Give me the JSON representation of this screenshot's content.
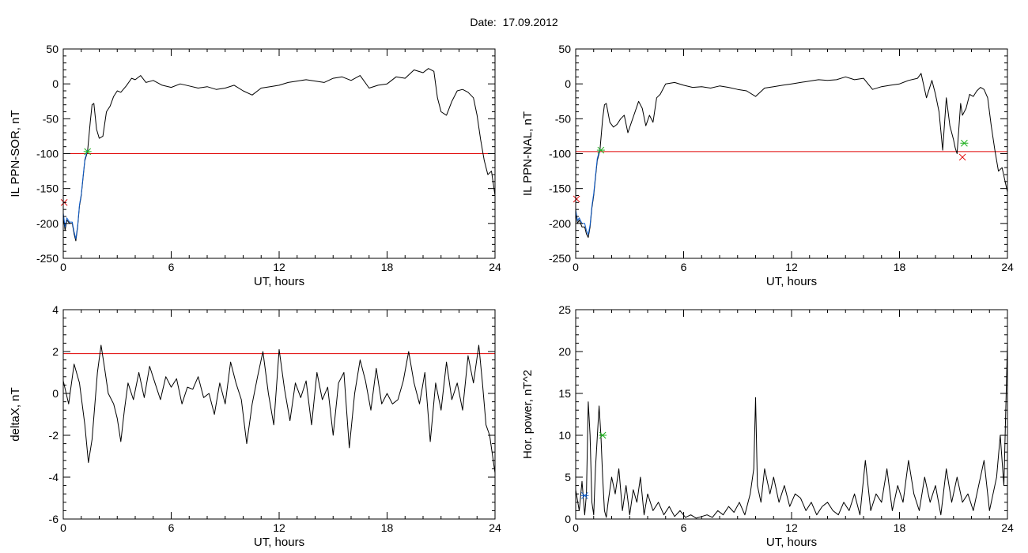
{
  "page": {
    "title": "Date:  17.09.2012"
  },
  "colors": {
    "trace": "#000000",
    "threshold": "#e00000",
    "blue": "#1060d0",
    "green": "#20b020",
    "red": "#e00000"
  },
  "chart_data": [
    {
      "type": "line",
      "ylabel": "IL PPN-SOR, nT",
      "xlabel": "UT, hours",
      "xlim": [
        0,
        24
      ],
      "ylim": [
        -250,
        50
      ],
      "xticks": [
        0,
        6,
        12,
        18,
        24
      ],
      "yticks": [
        -250,
        -200,
        -150,
        -100,
        -50,
        0,
        50
      ],
      "threshold": -100,
      "series": [
        {
          "color": "black",
          "x": [
            0,
            0.1,
            0.2,
            0.35,
            0.5,
            0.6,
            0.7,
            0.8,
            0.9,
            1.0,
            1.1,
            1.2,
            1.35,
            1.5,
            1.6,
            1.7,
            1.85,
            2.0,
            2.2,
            2.4,
            2.6,
            2.8,
            3.0,
            3.2,
            3.5,
            3.8,
            4.0,
            4.3,
            4.6,
            5.0,
            5.5,
            6.0,
            6.5,
            7.0,
            7.5,
            8.0,
            8.5,
            9.0,
            9.5,
            10.0,
            10.5,
            11.0,
            11.5,
            12.0,
            12.5,
            13.0,
            13.5,
            14.0,
            14.5,
            15.0,
            15.5,
            16.0,
            16.5,
            17.0,
            17.5,
            18.0,
            18.5,
            19.0,
            19.5,
            20.0,
            20.3,
            20.6,
            20.8,
            21.0,
            21.3,
            21.6,
            21.9,
            22.2,
            22.5,
            22.8,
            23.0,
            23.2,
            23.4,
            23.6,
            23.8,
            24.0
          ],
          "y": [
            -190,
            -210,
            -195,
            -200,
            -200,
            -215,
            -225,
            -205,
            -175,
            -160,
            -135,
            -110,
            -97,
            -55,
            -30,
            -28,
            -65,
            -78,
            -75,
            -40,
            -32,
            -18,
            -10,
            -12,
            -3,
            8,
            6,
            12,
            2,
            5,
            -2,
            -5,
            0,
            -3,
            -6,
            -4,
            -8,
            -6,
            -2,
            -10,
            -16,
            -6,
            -4,
            -2,
            2,
            4,
            6,
            4,
            2,
            8,
            10,
            5,
            12,
            -6,
            -2,
            0,
            10,
            8,
            20,
            16,
            22,
            18,
            -20,
            -40,
            -45,
            -25,
            -10,
            -8,
            -12,
            -20,
            -45,
            -80,
            -110,
            -130,
            -125,
            -160
          ]
        },
        {
          "color": "blue",
          "x": [
            0,
            0.1,
            0.2,
            0.35,
            0.5,
            0.6,
            0.7,
            0.8,
            0.9,
            1.0,
            1.1,
            1.2,
            1.35
          ],
          "y": [
            -185,
            -205,
            -192,
            -198,
            -198,
            -212,
            -222,
            -203,
            -173,
            -158,
            -133,
            -108,
            -95
          ]
        }
      ],
      "markers": [
        {
          "x": 1.35,
          "y": -97,
          "symbol": "*",
          "color": "green"
        },
        {
          "x": 0.05,
          "y": -170,
          "symbol": "x",
          "color": "red"
        }
      ]
    },
    {
      "type": "line",
      "ylabel": "IL PPN-NAL, nT",
      "xlabel": "UT, hours",
      "xlim": [
        0,
        24
      ],
      "ylim": [
        -250,
        50
      ],
      "xticks": [
        0,
        6,
        12,
        18,
        24
      ],
      "yticks": [
        -250,
        -200,
        -150,
        -100,
        -50,
        0,
        50
      ],
      "threshold": -97,
      "series": [
        {
          "color": "black",
          "x": [
            0,
            0.1,
            0.2,
            0.35,
            0.5,
            0.6,
            0.7,
            0.8,
            0.9,
            1.0,
            1.1,
            1.2,
            1.35,
            1.5,
            1.6,
            1.7,
            1.9,
            2.1,
            2.3,
            2.5,
            2.7,
            2.9,
            3.1,
            3.3,
            3.5,
            3.7,
            3.9,
            4.1,
            4.3,
            4.5,
            4.7,
            5.0,
            5.5,
            6.0,
            6.5,
            7.0,
            7.5,
            8.0,
            8.5,
            9.0,
            9.5,
            10.0,
            10.5,
            11.0,
            11.5,
            12.0,
            12.5,
            13.0,
            13.5,
            14.0,
            14.5,
            15.0,
            15.5,
            16.0,
            16.5,
            17.0,
            17.5,
            18.0,
            18.5,
            19.0,
            19.2,
            19.5,
            19.8,
            20.0,
            20.2,
            20.4,
            20.6,
            20.8,
            21.0,
            21.1,
            21.2,
            21.4,
            21.5,
            21.7,
            21.9,
            22.1,
            22.3,
            22.5,
            22.7,
            22.9,
            23.1,
            23.3,
            23.5,
            23.7,
            24.0
          ],
          "y": [
            -185,
            -200,
            -195,
            -205,
            -205,
            -215,
            -220,
            -205,
            -178,
            -160,
            -135,
            -110,
            -95,
            -50,
            -30,
            -28,
            -55,
            -62,
            -58,
            -50,
            -45,
            -70,
            -55,
            -40,
            -25,
            -35,
            -60,
            -45,
            -55,
            -20,
            -15,
            0,
            2,
            -2,
            -5,
            -4,
            -6,
            -3,
            -5,
            -8,
            -10,
            -18,
            -6,
            -4,
            -2,
            0,
            2,
            4,
            6,
            5,
            6,
            10,
            6,
            8,
            -8,
            -4,
            -2,
            0,
            5,
            8,
            15,
            -20,
            5,
            -15,
            -40,
            -95,
            -20,
            -60,
            -80,
            -92,
            -100,
            -28,
            -45,
            -35,
            -15,
            -18,
            -10,
            -5,
            -8,
            -20,
            -60,
            -95,
            -125,
            -120,
            -155
          ]
        },
        {
          "color": "blue",
          "x": [
            0,
            0.1,
            0.2,
            0.35,
            0.5,
            0.6,
            0.7,
            0.8,
            0.9,
            1.0,
            1.1,
            1.2,
            1.35
          ],
          "y": [
            -180,
            -196,
            -192,
            -200,
            -200,
            -210,
            -216,
            -202,
            -175,
            -157,
            -132,
            -107,
            -93
          ]
        }
      ],
      "markers": [
        {
          "x": 1.4,
          "y": -95,
          "symbol": "*",
          "color": "green"
        },
        {
          "x": 21.6,
          "y": -85,
          "symbol": "*",
          "color": "green"
        },
        {
          "x": 21.5,
          "y": -105,
          "symbol": "x",
          "color": "red"
        },
        {
          "x": 0.05,
          "y": -165,
          "symbol": "x",
          "color": "red"
        }
      ]
    },
    {
      "type": "line",
      "ylabel": "deltaX, nT",
      "xlabel": "UT, hours",
      "xlim": [
        0,
        24
      ],
      "ylim": [
        -6,
        4
      ],
      "xticks": [
        0,
        6,
        12,
        18,
        24
      ],
      "yticks": [
        -6,
        -4,
        -2,
        0,
        2,
        4
      ],
      "threshold": 1.9,
      "series": [
        {
          "color": "black",
          "x": [
            0,
            0.3,
            0.6,
            0.9,
            1.2,
            1.4,
            1.6,
            1.9,
            2.1,
            2.3,
            2.5,
            2.8,
            3.0,
            3.2,
            3.4,
            3.6,
            3.9,
            4.2,
            4.5,
            4.8,
            5.1,
            5.4,
            5.7,
            6.0,
            6.3,
            6.6,
            6.9,
            7.2,
            7.5,
            7.8,
            8.1,
            8.4,
            8.7,
            9.0,
            9.3,
            9.6,
            9.9,
            10.2,
            10.5,
            10.8,
            11.1,
            11.4,
            11.7,
            12.0,
            12.3,
            12.6,
            12.9,
            13.2,
            13.5,
            13.8,
            14.1,
            14.4,
            14.7,
            15.0,
            15.3,
            15.6,
            15.9,
            16.2,
            16.5,
            16.8,
            17.1,
            17.4,
            17.7,
            18.0,
            18.3,
            18.6,
            18.9,
            19.2,
            19.5,
            19.8,
            20.1,
            20.4,
            20.7,
            21.0,
            21.3,
            21.6,
            21.9,
            22.2,
            22.5,
            22.8,
            23.1,
            23.3,
            23.5,
            23.7,
            24.0
          ],
          "y": [
            0.6,
            -0.5,
            1.4,
            0.5,
            -1.5,
            -3.3,
            -2.2,
            1.0,
            2.3,
            1.2,
            0,
            -0.5,
            -1.2,
            -2.3,
            -0.8,
            0.5,
            -0.3,
            1.0,
            -0.2,
            1.3,
            0.5,
            -0.3,
            0.8,
            0.3,
            0.7,
            -0.5,
            0.3,
            0.2,
            0.8,
            -0.2,
            0,
            -1.0,
            0.5,
            -0.5,
            1.5,
            0.5,
            -0.3,
            -2.4,
            -0.5,
            0.8,
            2.0,
            0,
            -1.5,
            2.1,
            0.2,
            -1.3,
            0.5,
            -0.2,
            0.6,
            -1.5,
            1.0,
            -0.3,
            0.3,
            -2.0,
            0.5,
            1.0,
            -2.6,
            0,
            1.6,
            0.6,
            -0.8,
            1.2,
            -0.5,
            0,
            -0.5,
            -0.3,
            0.6,
            2.0,
            0.5,
            -0.5,
            1.0,
            -2.3,
            0.5,
            -0.8,
            1.5,
            -0.3,
            0.5,
            -0.8,
            1.8,
            0.5,
            2.3,
            0.5,
            -1.5,
            -2.0,
            -3.8
          ]
        }
      ]
    },
    {
      "type": "line",
      "ylabel": "Hor. power, nT^2",
      "xlabel": "UT, hours",
      "xlim": [
        0,
        24
      ],
      "ylim": [
        0,
        25
      ],
      "xticks": [
        0,
        6,
        12,
        18,
        24
      ],
      "yticks": [
        0,
        5,
        10,
        15,
        20,
        25
      ],
      "threshold": 25,
      "series": [
        {
          "color": "black",
          "x": [
            0,
            0.2,
            0.35,
            0.5,
            0.6,
            0.7,
            0.8,
            0.9,
            1.0,
            1.1,
            1.3,
            1.4,
            1.5,
            1.6,
            1.7,
            1.8,
            2.0,
            2.2,
            2.4,
            2.6,
            2.8,
            3.0,
            3.2,
            3.4,
            3.6,
            3.8,
            4.0,
            4.3,
            4.6,
            4.9,
            5.2,
            5.5,
            5.8,
            6.1,
            6.4,
            6.7,
            7.0,
            7.3,
            7.6,
            7.9,
            8.2,
            8.5,
            8.8,
            9.1,
            9.4,
            9.7,
            9.9,
            10.0,
            10.1,
            10.3,
            10.5,
            10.8,
            11.0,
            11.3,
            11.6,
            11.9,
            12.2,
            12.5,
            12.8,
            13.1,
            13.4,
            13.7,
            14.0,
            14.3,
            14.6,
            14.9,
            15.2,
            15.5,
            15.8,
            16.1,
            16.4,
            16.7,
            17.0,
            17.3,
            17.6,
            17.9,
            18.2,
            18.5,
            18.8,
            19.1,
            19.4,
            19.7,
            20.0,
            20.3,
            20.6,
            20.9,
            21.2,
            21.5,
            21.8,
            22.1,
            22.4,
            22.7,
            23.0,
            23.2,
            23.4,
            23.6,
            23.8,
            24.0
          ],
          "y": [
            3.5,
            1,
            4.5,
            0.5,
            3,
            14,
            10,
            2,
            0.5,
            6,
            13.5,
            10,
            5,
            1,
            0.2,
            2,
            5,
            3,
            6,
            1,
            4,
            0.5,
            3.5,
            2,
            5,
            0.5,
            3,
            1,
            2,
            0.5,
            1.5,
            0.3,
            1,
            0.2,
            0.5,
            0.1,
            0.3,
            0.5,
            0.2,
            1,
            0.5,
            1.5,
            0.8,
            2,
            0.5,
            3,
            6,
            14.5,
            4,
            2,
            6,
            3,
            5,
            2,
            4,
            1.5,
            3,
            2.5,
            1,
            2,
            0.5,
            1.5,
            2,
            1,
            0.5,
            2,
            1,
            3,
            0.5,
            7,
            1,
            3,
            2,
            6,
            1,
            4,
            2,
            7,
            3,
            1,
            5,
            2,
            4,
            0.5,
            6,
            2,
            5,
            2,
            3,
            1,
            4,
            7,
            1,
            3,
            5,
            10,
            4,
            21
          ]
        }
      ],
      "markers": [
        {
          "x": 0.5,
          "y": 2.8,
          "symbol": "*",
          "color": "blue"
        },
        {
          "x": 1.5,
          "y": 10,
          "symbol": "*",
          "color": "green"
        }
      ]
    }
  ]
}
